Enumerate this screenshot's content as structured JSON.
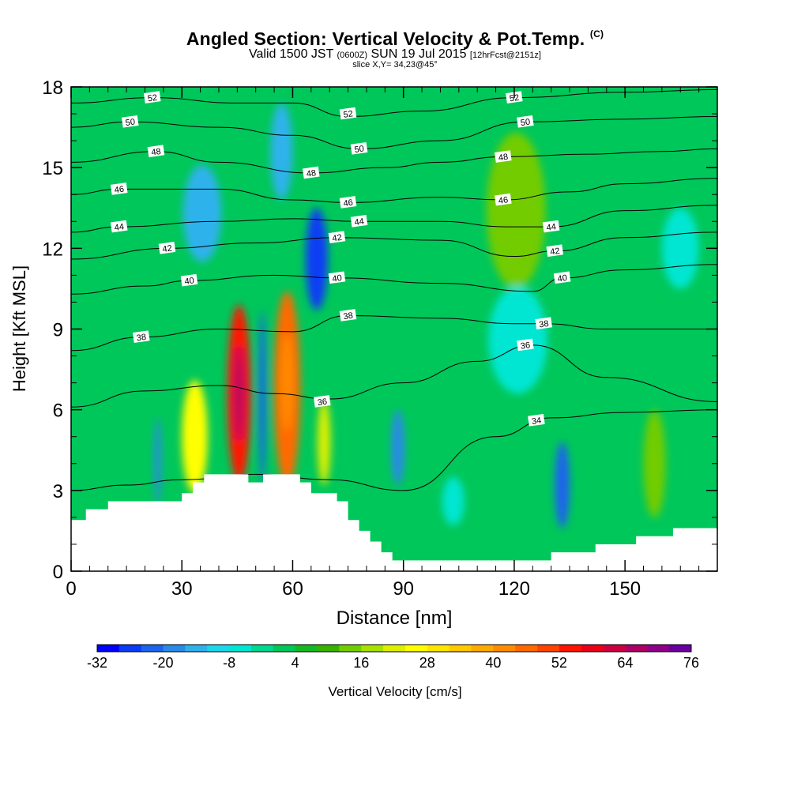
{
  "title": {
    "main": "Angled Section: Vertical Velocity & Pot.Temp.",
    "suffix": "(C)",
    "line2_a": "Valid 1500 JST",
    "line2_b": "(0600Z)",
    "line2_c": "SUN 19 Jul 2015",
    "line2_d": "[12hrFcst@2151z]",
    "line3": "slice X,Y= 34,23@45°"
  },
  "chart_data": {
    "type": "heatmap",
    "xlabel": "Distance [nm]",
    "ylabel": "Height [Kft MSL]",
    "xlim": [
      0,
      175
    ],
    "ylim": [
      0,
      18
    ],
    "xticks": [
      0,
      30,
      60,
      90,
      120,
      150
    ],
    "yticks": [
      0,
      3,
      6,
      9,
      12,
      15,
      18
    ],
    "colorbar": {
      "label": "Vertical Velocity [cm/s]",
      "ticks": [
        -32,
        -20,
        -8,
        4,
        16,
        28,
        40,
        52,
        64,
        76
      ],
      "min": -32,
      "max": 76,
      "step": 4,
      "colors": [
        "#0000ff",
        "#0a3cf5",
        "#1c64ee",
        "#2a8ae8",
        "#2fb2ec",
        "#1cd6ec",
        "#00e6d2",
        "#00d68e",
        "#00c75a",
        "#16b822",
        "#38b200",
        "#72cc00",
        "#a8e000",
        "#dcf000",
        "#ffff00",
        "#ffe400",
        "#ffc800",
        "#ffaa00",
        "#ff8c00",
        "#ff6a00",
        "#ff4400",
        "#ff1400",
        "#ea0018",
        "#cc0040",
        "#ac0064",
        "#8e008a",
        "#6a00a0"
      ]
    },
    "background_value": 2,
    "cells": [
      {
        "x": 45.5,
        "y": 6.6,
        "rx": 3.2,
        "ry": 3.3,
        "v": 52
      },
      {
        "x": 45.5,
        "y": 6.6,
        "rx": 1.2,
        "ry": 1.8,
        "v": 64
      },
      {
        "x": 58.5,
        "y": 6.8,
        "rx": 3.6,
        "ry": 3.6,
        "v": 44
      },
      {
        "x": 58.5,
        "y": 7.0,
        "rx": 1.6,
        "ry": 1.8,
        "v": 40
      },
      {
        "x": 33.5,
        "y": 5.0,
        "rx": 3.5,
        "ry": 2.1,
        "v": 24
      },
      {
        "x": 68.5,
        "y": 4.8,
        "rx": 1.8,
        "ry": 1.6,
        "v": 22
      },
      {
        "x": 120.5,
        "y": 13.4,
        "rx": 8.0,
        "ry": 2.9,
        "v": 12
      },
      {
        "x": 158.0,
        "y": 4.0,
        "rx": 3.0,
        "ry": 2.0,
        "v": 12
      },
      {
        "x": 51.8,
        "y": 6.5,
        "rx": 1.0,
        "ry": 3.2,
        "v": -22
      },
      {
        "x": 23.5,
        "y": 4.1,
        "rx": 0.9,
        "ry": 1.6,
        "v": -18
      },
      {
        "x": 66.5,
        "y": 11.6,
        "rx": 3.0,
        "ry": 1.9,
        "v": -26
      },
      {
        "x": 57.0,
        "y": 15.6,
        "rx": 3.0,
        "ry": 1.8,
        "v": -16
      },
      {
        "x": 35.5,
        "y": 13.3,
        "rx": 5.2,
        "ry": 1.8,
        "v": -14
      },
      {
        "x": 88.5,
        "y": 4.6,
        "rx": 1.8,
        "ry": 1.4,
        "v": -18
      },
      {
        "x": 133.0,
        "y": 3.2,
        "rx": 2.0,
        "ry": 1.6,
        "v": -24
      },
      {
        "x": 121.0,
        "y": 8.6,
        "rx": 8.0,
        "ry": 2.0,
        "v": -6
      },
      {
        "x": 165.0,
        "y": 12.0,
        "rx": 5.0,
        "ry": 1.5,
        "v": -6
      },
      {
        "x": 103.5,
        "y": 2.6,
        "rx": 3.0,
        "ry": 0.9,
        "v": -8
      }
    ],
    "terrain": [
      [
        0,
        1.9
      ],
      [
        4,
        1.9
      ],
      [
        4,
        2.3
      ],
      [
        10,
        2.3
      ],
      [
        10,
        2.6
      ],
      [
        30,
        2.6
      ],
      [
        30,
        2.9
      ],
      [
        33,
        2.9
      ],
      [
        33,
        3.3
      ],
      [
        36,
        3.3
      ],
      [
        36,
        3.6
      ],
      [
        48,
        3.6
      ],
      [
        48,
        3.3
      ],
      [
        52,
        3.3
      ],
      [
        52,
        3.6
      ],
      [
        62,
        3.6
      ],
      [
        62,
        3.3
      ],
      [
        65,
        3.3
      ],
      [
        65,
        2.9
      ],
      [
        72,
        2.9
      ],
      [
        72,
        2.6
      ],
      [
        75,
        2.6
      ],
      [
        75,
        1.9
      ],
      [
        78,
        1.9
      ],
      [
        78,
        1.5
      ],
      [
        81,
        1.5
      ],
      [
        81,
        1.1
      ],
      [
        84,
        1.1
      ],
      [
        84,
        0.7
      ],
      [
        87,
        0.7
      ],
      [
        87,
        0.4
      ],
      [
        130,
        0.4
      ],
      [
        130,
        0.7
      ],
      [
        142,
        0.7
      ],
      [
        142,
        1.0
      ],
      [
        153,
        1.0
      ],
      [
        153,
        1.3
      ],
      [
        163,
        1.3
      ],
      [
        163,
        1.6
      ],
      [
        175,
        1.6
      ]
    ],
    "contours": [
      {
        "v": 34,
        "label_at": [
          126,
          5.6
        ],
        "points": [
          [
            0,
            3.0
          ],
          [
            15,
            3.2
          ],
          [
            30,
            3.4
          ],
          [
            50,
            3.6
          ],
          [
            70,
            3.4
          ],
          [
            90,
            3.0
          ],
          [
            115,
            5.0
          ],
          [
            130,
            5.7
          ],
          [
            150,
            5.9
          ],
          [
            175,
            6.0
          ]
        ]
      },
      {
        "v": 36,
        "label_at": [
          68,
          6.3
        ],
        "points": [
          [
            0,
            6.1
          ],
          [
            20,
            6.7
          ],
          [
            40,
            6.9
          ],
          [
            55,
            6.6
          ],
          [
            70,
            6.4
          ],
          [
            90,
            7.0
          ],
          [
            110,
            7.8
          ],
          [
            125,
            8.4
          ],
          [
            145,
            7.2
          ],
          [
            175,
            6.3
          ]
        ]
      },
      {
        "v": 38,
        "label_at": [
          19,
          8.7
        ],
        "points": [
          [
            0,
            8.2
          ],
          [
            19,
            8.7
          ],
          [
            40,
            9.0
          ],
          [
            60,
            8.9
          ],
          [
            75,
            9.5
          ],
          [
            100,
            9.4
          ],
          [
            120,
            9.2
          ],
          [
            128,
            9.2
          ],
          [
            145,
            9.0
          ],
          [
            175,
            9.0
          ]
        ]
      },
      {
        "v": 40,
        "label_at": [
          32,
          10.8
        ],
        "points": [
          [
            0,
            10.3
          ],
          [
            20,
            10.6
          ],
          [
            32,
            10.8
          ],
          [
            55,
            11.0
          ],
          [
            72,
            10.9
          ],
          [
            100,
            10.7
          ],
          [
            125,
            10.4
          ],
          [
            133,
            10.9
          ],
          [
            150,
            11.2
          ],
          [
            175,
            11.4
          ]
        ]
      },
      {
        "v": 42,
        "label_at": [
          26,
          12.0
        ],
        "points": [
          [
            0,
            11.6
          ],
          [
            26,
            12.0
          ],
          [
            50,
            12.2
          ],
          [
            72,
            12.4
          ],
          [
            100,
            12.3
          ],
          [
            120,
            11.7
          ],
          [
            131,
            11.9
          ],
          [
            150,
            12.4
          ],
          [
            175,
            12.6
          ]
        ]
      },
      {
        "v": 44,
        "label_at": [
          13,
          12.8
        ],
        "points": [
          [
            0,
            12.6
          ],
          [
            13,
            12.8
          ],
          [
            40,
            13.0
          ],
          [
            60,
            13.1
          ],
          [
            78,
            13.0
          ],
          [
            100,
            13.0
          ],
          [
            118,
            12.8
          ],
          [
            130,
            12.8
          ],
          [
            150,
            13.4
          ],
          [
            175,
            13.6
          ]
        ]
      },
      {
        "v": 46,
        "label_at": [
          13,
          14.2
        ],
        "points": [
          [
            0,
            14.0
          ],
          [
            13,
            14.2
          ],
          [
            40,
            14.2
          ],
          [
            60,
            13.8
          ],
          [
            75,
            13.7
          ],
          [
            100,
            13.9
          ],
          [
            117,
            13.8
          ],
          [
            135,
            14.1
          ],
          [
            150,
            14.4
          ],
          [
            175,
            14.6
          ]
        ]
      },
      {
        "v": 48,
        "label_at": [
          23,
          15.6
        ],
        "points": [
          [
            0,
            15.2
          ],
          [
            23,
            15.6
          ],
          [
            40,
            15.2
          ],
          [
            65,
            14.8
          ],
          [
            85,
            15.0
          ],
          [
            100,
            15.2
          ],
          [
            117,
            15.4
          ],
          [
            140,
            15.5
          ],
          [
            160,
            15.6
          ],
          [
            175,
            15.7
          ]
        ]
      },
      {
        "v": 50,
        "label_at": [
          16,
          16.7
        ],
        "points": [
          [
            0,
            16.5
          ],
          [
            16,
            16.7
          ],
          [
            40,
            16.5
          ],
          [
            60,
            16.2
          ],
          [
            78,
            15.7
          ],
          [
            100,
            16.0
          ],
          [
            123,
            16.7
          ],
          [
            150,
            16.8
          ],
          [
            175,
            16.9
          ]
        ]
      },
      {
        "v": 52,
        "label_at": [
          22,
          17.6
        ],
        "points": [
          [
            0,
            17.4
          ],
          [
            22,
            17.6
          ],
          [
            45,
            17.4
          ],
          [
            60,
            17.4
          ],
          [
            75,
            16.9
          ],
          [
            95,
            17.1
          ],
          [
            120,
            17.6
          ],
          [
            150,
            17.8
          ],
          [
            175,
            17.9
          ]
        ]
      }
    ],
    "extra_contour_labels": [
      {
        "v": 52,
        "label_at": [
          75,
          17.0
        ]
      },
      {
        "v": 52,
        "label_at": [
          120,
          17.6
        ]
      },
      {
        "v": 50,
        "label_at": [
          123,
          16.7
        ]
      },
      {
        "v": 50,
        "label_at": [
          78,
          15.7
        ]
      },
      {
        "v": 48,
        "label_at": [
          65,
          14.8
        ]
      },
      {
        "v": 48,
        "label_at": [
          117,
          15.4
        ]
      },
      {
        "v": 46,
        "label_at": [
          75,
          13.7
        ]
      },
      {
        "v": 46,
        "label_at": [
          117,
          13.8
        ]
      },
      {
        "v": 44,
        "label_at": [
          78,
          13.0
        ]
      },
      {
        "v": 44,
        "label_at": [
          130,
          12.8
        ]
      },
      {
        "v": 42,
        "label_at": [
          72,
          12.4
        ]
      },
      {
        "v": 42,
        "label_at": [
          131,
          11.9
        ]
      },
      {
        "v": 40,
        "label_at": [
          72,
          10.9
        ]
      },
      {
        "v": 40,
        "label_at": [
          133,
          10.9
        ]
      },
      {
        "v": 38,
        "label_at": [
          75,
          9.5
        ]
      },
      {
        "v": 38,
        "label_at": [
          128,
          9.2
        ]
      },
      {
        "v": 36,
        "label_at": [
          123,
          8.4
        ]
      }
    ]
  }
}
